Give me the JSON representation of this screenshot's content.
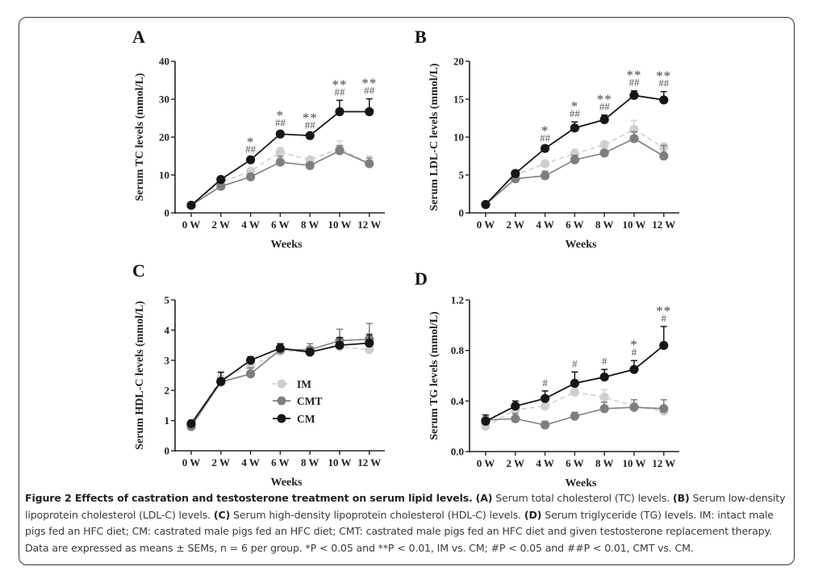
{
  "figure": {
    "caption_title": "Figure 2 Effects of castration and testosterone treatment on serum lipid levels.",
    "caption_parts": [
      {
        "label": "(A)",
        "text": " Serum total cholesterol (TC) levels. "
      },
      {
        "label": "(B)",
        "text": " Serum low-density lipoprotein cholesterol (LDL-C) levels. "
      },
      {
        "label": "(C)",
        "text": " Serum high-density lipoprotein cholesterol (HDL-C) levels. "
      },
      {
        "label": "(D)",
        "text": " Serum triglyceride (TG) levels. IM: intact male pigs fed an HFC diet; CM: castrated male pigs fed an HFC diet; CMT: castrated male pigs fed an HFC diet and given testosterone replacement therapy. Data are expressed as means ± SEMs, n = 6 per group. *P < 0.05 and **P < 0.01, IM vs. CM; #P < 0.05 and ##P < 0.01, CMT vs. CM."
      }
    ]
  },
  "legend": [
    {
      "name": "IM",
      "color": "#cfcfcf",
      "dashed": true
    },
    {
      "name": "CMT",
      "color": "#7e7e7e",
      "dashed": false
    },
    {
      "name": "CM",
      "color": "#161616",
      "dashed": false
    }
  ],
  "chart_data": [
    {
      "panel": "A",
      "type": "line",
      "title": "",
      "xlabel": "Weeks",
      "ylabel": "Serum TC levels (mmol/L)",
      "categories": [
        "0 W",
        "2 W",
        "4 W",
        "6 W",
        "8 W",
        "10 W",
        "12 W"
      ],
      "ylim": [
        0,
        40
      ],
      "yticks": [
        0,
        10,
        20,
        30,
        40
      ],
      "ytick_labels": [
        "0",
        "10",
        "20",
        "30",
        "40"
      ],
      "series": [
        {
          "name": "IM",
          "values": [
            2.0,
            8.0,
            11.0,
            16.0,
            14.0,
            17.0,
            13.0
          ],
          "err": [
            0.3,
            0.8,
            0.8,
            1.2,
            0.8,
            2.0,
            2.0
          ]
        },
        {
          "name": "CMT",
          "values": [
            2.0,
            7.0,
            9.5,
            13.4,
            12.5,
            16.4,
            13.0
          ],
          "err": [
            0.3,
            0.6,
            0.8,
            1.5,
            0.6,
            1.3,
            1.5
          ]
        },
        {
          "name": "CM",
          "values": [
            2.0,
            8.8,
            14.0,
            20.8,
            20.4,
            26.7,
            26.7
          ],
          "err": [
            0.3,
            0.5,
            0.6,
            0.8,
            0.6,
            3.0,
            3.4
          ]
        }
      ],
      "annotations": [
        {
          "x": "4 W",
          "star": "*",
          "hash": "##"
        },
        {
          "x": "6 W",
          "star": "*",
          "hash": "##"
        },
        {
          "x": "8 W",
          "star": "**",
          "hash": "##"
        },
        {
          "x": "10 W",
          "star": "**",
          "hash": "##"
        },
        {
          "x": "12 W",
          "star": "**",
          "hash": "##"
        }
      ]
    },
    {
      "panel": "B",
      "type": "line",
      "title": "",
      "xlabel": "Weeks",
      "ylabel": "Serum LDL-C levels (mmol/L)",
      "categories": [
        "0 W",
        "2 W",
        "4 W",
        "6 W",
        "8 W",
        "10 W",
        "12 W"
      ],
      "ylim": [
        0,
        20
      ],
      "yticks": [
        0,
        5,
        10,
        15,
        20
      ],
      "ytick_labels": [
        "0",
        "5",
        "10",
        "15",
        "20"
      ],
      "series": [
        {
          "name": "IM",
          "values": [
            1.1,
            5.0,
            6.5,
            7.8,
            9.0,
            11.0,
            8.6
          ],
          "err": [
            0.2,
            0.3,
            0.4,
            0.6,
            0.4,
            1.2,
            0.6
          ]
        },
        {
          "name": "CMT",
          "values": [
            1.1,
            4.5,
            4.9,
            7.0,
            7.9,
            9.8,
            7.5
          ],
          "err": [
            0.2,
            0.3,
            0.6,
            0.6,
            0.4,
            0.9,
            1.4
          ]
        },
        {
          "name": "CM",
          "values": [
            1.1,
            5.2,
            8.5,
            11.2,
            12.3,
            15.5,
            14.9
          ],
          "err": [
            0.2,
            0.3,
            0.3,
            0.8,
            0.6,
            0.6,
            1.1
          ]
        }
      ],
      "annotations": [
        {
          "x": "4 W",
          "star": "*",
          "hash": "##"
        },
        {
          "x": "6 W",
          "star": "*",
          "hash": "##"
        },
        {
          "x": "8 W",
          "star": "**",
          "hash": "##"
        },
        {
          "x": "10 W",
          "star": "**",
          "hash": "##"
        },
        {
          "x": "12 W",
          "star": "**",
          "hash": "##"
        }
      ]
    },
    {
      "panel": "C",
      "type": "line",
      "title": "",
      "xlabel": "Weeks",
      "ylabel": "Serum HDL-C levels (mmol/L)",
      "categories": [
        "0 W",
        "2 W",
        "4 W",
        "6 W",
        "8 W",
        "10 W",
        "12 W"
      ],
      "ylim": [
        0,
        5
      ],
      "yticks": [
        0,
        1,
        2,
        3,
        4,
        5
      ],
      "ytick_labels": [
        "0",
        "1",
        "2",
        "3",
        "4",
        "5"
      ],
      "series": [
        {
          "name": "IM",
          "values": [
            0.85,
            2.4,
            2.8,
            3.3,
            3.3,
            3.45,
            3.35
          ],
          "err": [
            0.05,
            0.25,
            0.1,
            0.1,
            0.1,
            0.15,
            0.55
          ]
        },
        {
          "name": "CMT",
          "values": [
            0.8,
            2.28,
            2.55,
            3.35,
            3.35,
            3.65,
            3.7
          ],
          "err": [
            0.05,
            0.1,
            0.2,
            0.15,
            0.2,
            0.38,
            0.52
          ]
        },
        {
          "name": "CM",
          "values": [
            0.9,
            2.3,
            3.0,
            3.4,
            3.27,
            3.5,
            3.57
          ],
          "err": [
            0.05,
            0.3,
            0.12,
            0.15,
            0.1,
            0.25,
            0.28
          ]
        }
      ],
      "legend_position": "center",
      "annotations": []
    },
    {
      "panel": "D",
      "type": "line",
      "title": "",
      "xlabel": "Weeks",
      "ylabel": "Serum TG levels (mmol/L)",
      "categories": [
        "0 W",
        "2 W",
        "4 W",
        "6 W",
        "8 W",
        "10 W",
        "12 W"
      ],
      "ylim": [
        0,
        1.2
      ],
      "yticks": [
        0,
        0.4,
        0.8,
        1.2
      ],
      "ytick_labels": [
        "0.0",
        "0.4",
        "0.8",
        "1.2"
      ],
      "series": [
        {
          "name": "IM",
          "values": [
            0.2,
            0.33,
            0.36,
            0.47,
            0.43,
            0.36,
            0.32
          ],
          "err": [
            0.02,
            0.02,
            0.03,
            0.04,
            0.06,
            0.03,
            0.03
          ]
        },
        {
          "name": "CMT",
          "values": [
            0.25,
            0.26,
            0.21,
            0.28,
            0.34,
            0.35,
            0.34
          ],
          "err": [
            0.02,
            0.04,
            0.03,
            0.03,
            0.05,
            0.06,
            0.07
          ]
        },
        {
          "name": "CM",
          "values": [
            0.24,
            0.36,
            0.42,
            0.54,
            0.59,
            0.65,
            0.84
          ],
          "err": [
            0.05,
            0.04,
            0.06,
            0.09,
            0.06,
            0.07,
            0.15
          ]
        }
      ],
      "annotations": [
        {
          "x": "4 W",
          "star": "",
          "hash": "#"
        },
        {
          "x": "6 W",
          "star": "",
          "hash": "#"
        },
        {
          "x": "8 W",
          "star": "",
          "hash": "#"
        },
        {
          "x": "10 W",
          "star": "*",
          "hash": "#"
        },
        {
          "x": "12 W",
          "star": "**",
          "hash": "#"
        }
      ]
    }
  ]
}
